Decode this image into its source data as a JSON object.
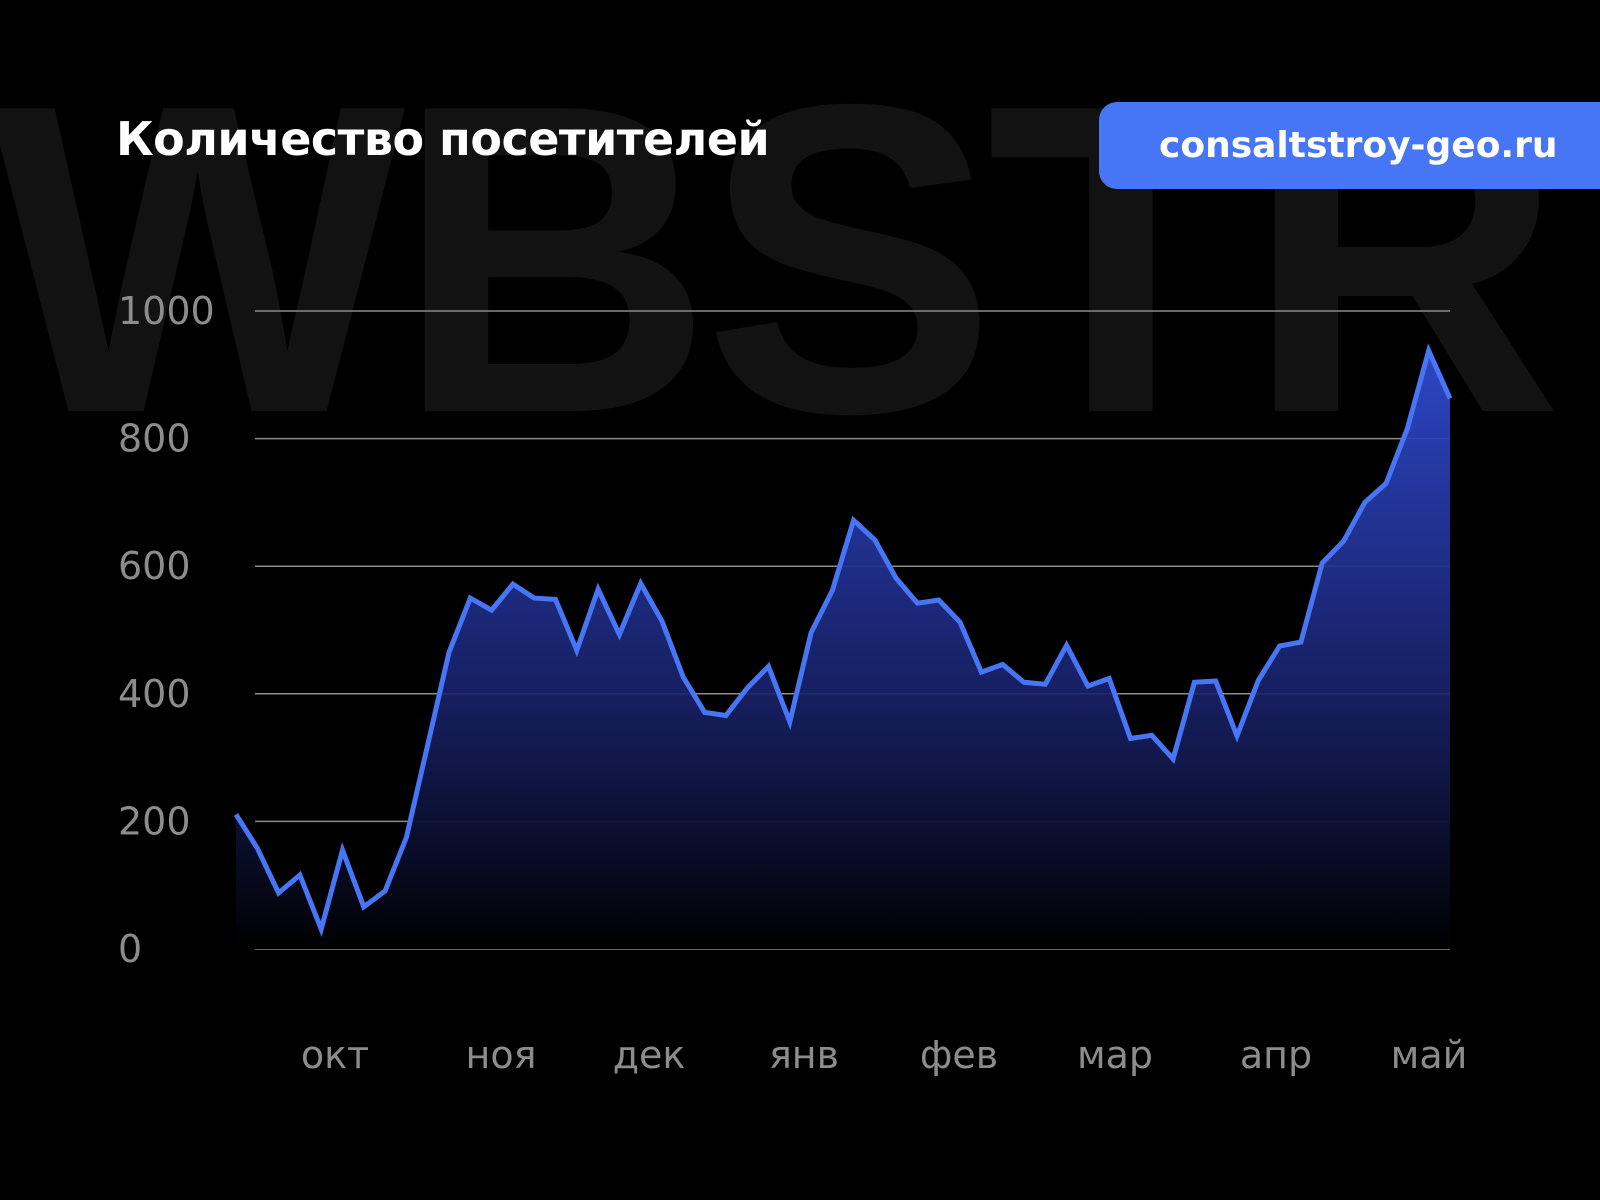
{
  "watermark": "WBSTR",
  "title": "Количество посетителей",
  "badge": "consaltstroy-geo.ru",
  "colors": {
    "line": "#4676f5",
    "fill_top": "#2a3fb8",
    "background": "#000000",
    "badge": "#4676f5",
    "grid": "#8a8a8a",
    "tick_text": "#8c8c8c"
  },
  "chart_data": {
    "type": "area",
    "title": "Количество посетителей",
    "ylim": [
      0,
      1000
    ],
    "yticks": [
      "0",
      "200",
      "400",
      "600",
      "800",
      "1000"
    ],
    "ytick_values": [
      0,
      200,
      400,
      600,
      800,
      1000
    ],
    "xtick_labels": [
      "окт",
      "ноя",
      "дек",
      "янв",
      "фев",
      "мар",
      "апр",
      "май"
    ],
    "grid": true,
    "values": [
      211,
      158,
      88,
      116,
      31,
      155,
      66,
      91,
      175,
      320,
      465,
      550,
      531,
      572,
      550,
      548,
      468,
      564,
      493,
      573,
      514,
      426,
      371,
      366,
      409,
      443,
      356,
      496,
      562,
      672,
      641,
      581,
      542,
      547,
      512,
      434,
      446,
      418,
      415,
      476,
      412,
      424,
      330,
      335,
      298,
      418,
      420,
      334,
      421,
      475,
      481,
      605,
      639,
      700,
      730,
      816,
      938,
      863
    ]
  }
}
